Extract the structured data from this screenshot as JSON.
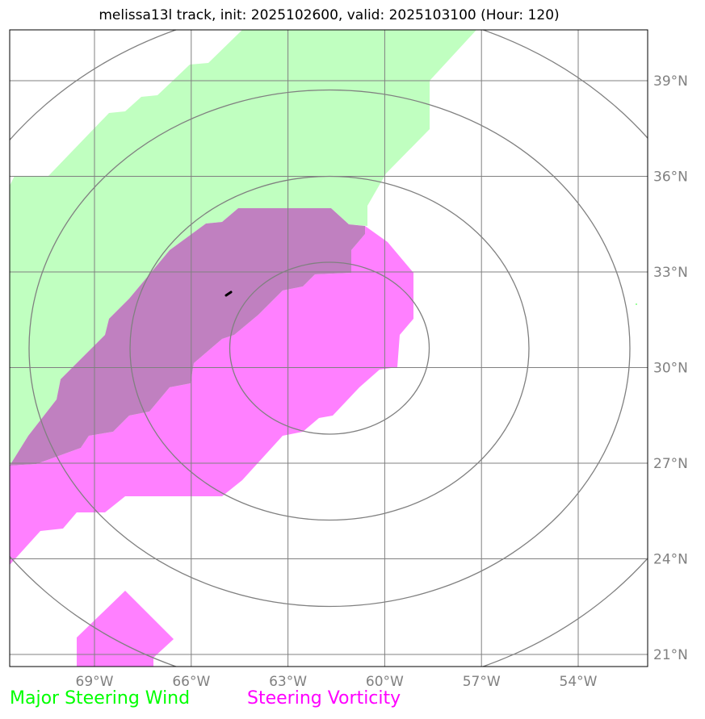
{
  "title": "melissa13l track, init: 2025102600, valid: 2025103100 (Hour: 120)",
  "map": {
    "longitude_ticks": [
      {
        "deg": -69,
        "label": "69°W"
      },
      {
        "deg": -66,
        "label": "66°W"
      },
      {
        "deg": -63,
        "label": "63°W"
      },
      {
        "deg": -60,
        "label": "60°W"
      },
      {
        "deg": -57,
        "label": "57°W"
      },
      {
        "deg": -54,
        "label": "54°W"
      }
    ],
    "latitude_ticks": [
      {
        "deg": 39,
        "label": "39°N"
      },
      {
        "deg": 36,
        "label": "36°N"
      },
      {
        "deg": 33,
        "label": "33°N"
      },
      {
        "deg": 30,
        "label": "30°N"
      },
      {
        "deg": 27,
        "label": "27°N"
      },
      {
        "deg": 24,
        "label": "24°N"
      },
      {
        "deg": 21,
        "label": "21°N"
      }
    ]
  },
  "legend": {
    "wind_label": "Major Steering Wind",
    "vorticity_label": "Steering Vorticity"
  },
  "colors": {
    "wind": "#00ff00",
    "wind_fill": "#c0ffc0",
    "vorticity": "#ff00ff",
    "vorticity_fill": "#ff80ff",
    "overlap_fill": "#c080c0",
    "grid": "#808080"
  }
}
